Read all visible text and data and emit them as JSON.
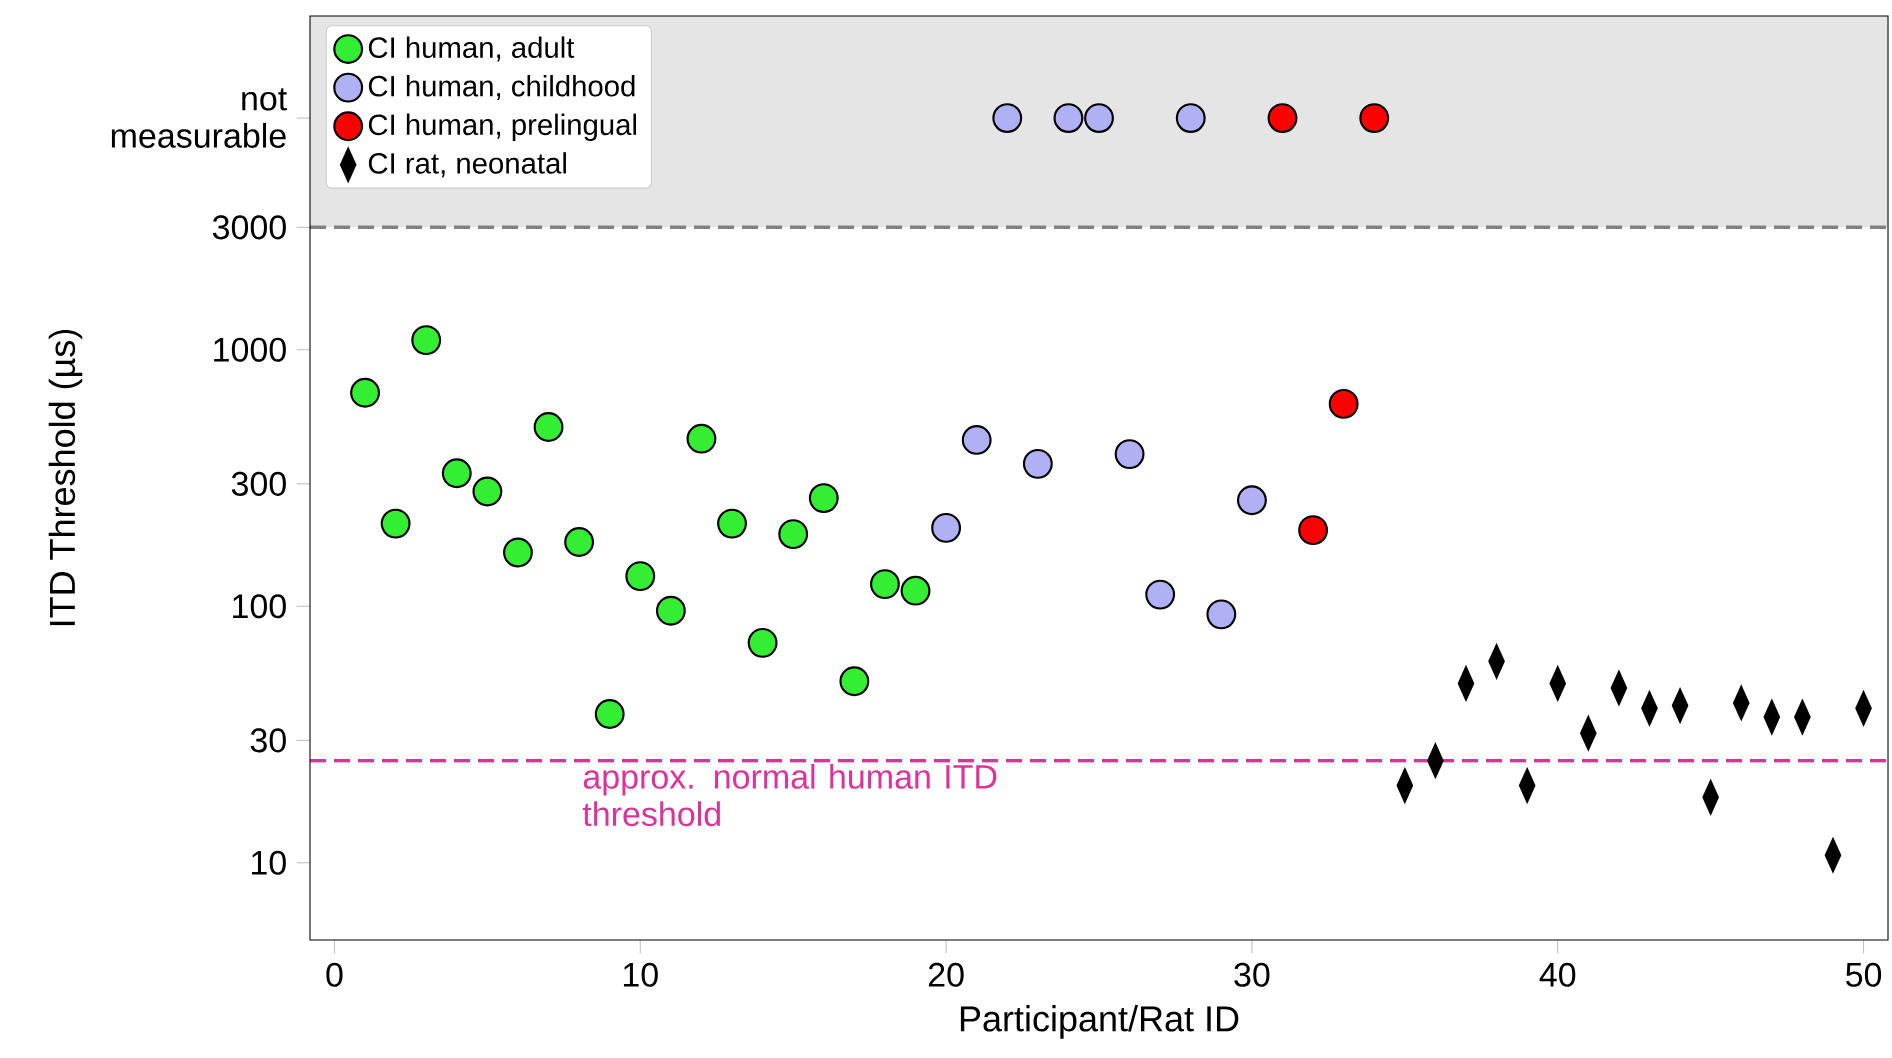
{
  "chart_data": {
    "type": "scatter",
    "xlabel": "Participant/Rat ID",
    "ylabel": "ITD Threshold (µs)",
    "log": "y",
    "xlim": [
      -0.8,
      50.8
    ],
    "xticks": [
      0,
      10,
      20,
      30,
      40,
      50
    ],
    "ylim": [
      5,
      20000
    ],
    "yticks": [
      10,
      30,
      100,
      300,
      1000,
      3000,
      {
        "value": 8000,
        "label": "not measurable"
      }
    ],
    "legend": "top left",
    "grid": false,
    "bands": [
      {
        "axis": "y",
        "from": 3000,
        "to": 20000,
        "color": "#e5e5e5"
      }
    ],
    "ref_lines": [
      {
        "axis": "y",
        "value": 3000,
        "color": "#808080",
        "line_style": "dashed"
      },
      {
        "axis": "y",
        "value": 25,
        "color": "#dd3399",
        "line_style": "dashed",
        "label": "approx. normal human ITD threshold"
      }
    ],
    "series": [
      {
        "name": "CI human, adult",
        "color": "#33ee33",
        "marker": "circle",
        "x": [
          1,
          2,
          3,
          4,
          5,
          6,
          7,
          8,
          9,
          10,
          11,
          12,
          13,
          14,
          15,
          16,
          17,
          18,
          19
        ],
        "values": [
          680,
          210,
          1090,
          330,
          280,
          162,
          500,
          178,
          38,
          131,
          96,
          450,
          210,
          72,
          191,
          264,
          51,
          122,
          115
        ]
      },
      {
        "name": "CI human, childhood",
        "color": "#b0b0f5",
        "marker": "circle",
        "x": [
          20,
          21,
          22,
          23,
          24,
          25,
          26,
          27,
          28,
          29,
          30
        ],
        "values": [
          202,
          445,
          8000,
          359,
          8000,
          8000,
          392,
          111,
          8000,
          93,
          259
        ]
      },
      {
        "name": "CI human, prelingual",
        "color": "#ff0000",
        "marker": "circle",
        "x": [
          31,
          32,
          33,
          34
        ],
        "values": [
          8000,
          198,
          615,
          8000
        ]
      },
      {
        "name": "CI rat, neonatal",
        "color": "#000000",
        "marker": "diamond",
        "x": [
          35,
          36,
          37,
          38,
          39,
          40,
          41,
          42,
          43,
          44,
          45,
          46,
          47,
          48,
          49,
          50
        ],
        "values": [
          20,
          25,
          50,
          61,
          20,
          50,
          32,
          48,
          40,
          41,
          18,
          42,
          37,
          37,
          10.7,
          40
        ]
      }
    ]
  }
}
